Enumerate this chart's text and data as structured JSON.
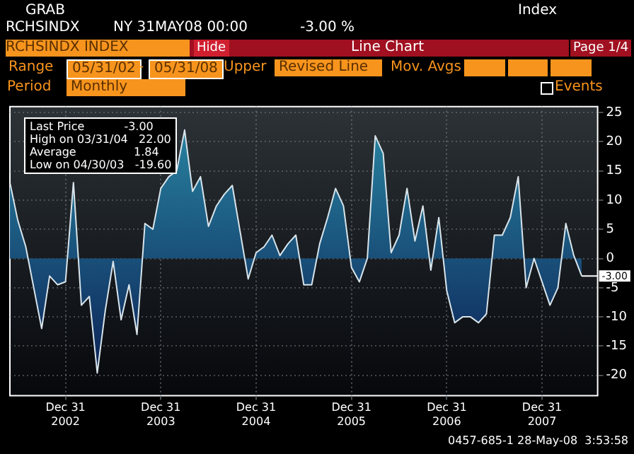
{
  "chart_data": {
    "type": "area",
    "title": "RCHSINDX INDEX",
    "x": [
      "2002-05",
      "2002-06",
      "2002-07",
      "2002-08",
      "2002-09",
      "2002-10",
      "2002-11",
      "2002-12",
      "2003-01",
      "2003-02",
      "2003-03",
      "2003-04",
      "2003-05",
      "2003-06",
      "2003-07",
      "2003-08",
      "2003-09",
      "2003-10",
      "2003-11",
      "2003-12",
      "2004-01",
      "2004-02",
      "2004-03",
      "2004-04",
      "2004-05",
      "2004-06",
      "2004-07",
      "2004-08",
      "2004-09",
      "2004-10",
      "2004-11",
      "2004-12",
      "2005-01",
      "2005-02",
      "2005-03",
      "2005-04",
      "2005-05",
      "2005-06",
      "2005-07",
      "2005-08",
      "2005-09",
      "2005-10",
      "2005-11",
      "2005-12",
      "2006-01",
      "2006-02",
      "2006-03",
      "2006-04",
      "2006-05",
      "2006-06",
      "2006-07",
      "2006-08",
      "2006-09",
      "2006-10",
      "2006-11",
      "2006-12",
      "2007-01",
      "2007-02",
      "2007-03",
      "2007-04",
      "2007-05",
      "2007-06",
      "2007-07",
      "2007-08",
      "2007-09",
      "2007-10",
      "2007-11",
      "2007-12",
      "2008-01",
      "2008-02",
      "2008-03",
      "2008-04",
      "2008-05"
    ],
    "series": [
      {
        "color": "#2a8aa6",
        "values": [
          13,
          6.5,
          2,
          -5,
          -12,
          -3,
          -4.5,
          -4,
          13,
          -8,
          -6.5,
          -19.6,
          -9,
          -0.5,
          -10.5,
          -4.5,
          -13,
          6,
          5,
          12,
          14,
          15,
          22,
          11.5,
          14,
          5.5,
          9,
          11,
          12.5,
          4.5,
          -3.5,
          1,
          2,
          4,
          0.5,
          2.5,
          4,
          -4.5,
          -4.5,
          2.5,
          7,
          12,
          9,
          -1.5,
          -4,
          0,
          21,
          18,
          1,
          4,
          12,
          3,
          9,
          -2,
          7,
          -5.5,
          -11,
          -10,
          -10,
          -11,
          -9.5,
          4,
          4,
          7,
          14,
          -5,
          0,
          -4,
          -8,
          -5,
          6,
          0.5,
          -3
        ]
      }
    ],
    "xlim": [
      "2002-05",
      "2008-07"
    ],
    "xticks": [
      {
        "value": "2002-12",
        "label": "Dec 31\n2002"
      },
      {
        "value": "2003-12",
        "label": "Dec 31\n2003"
      },
      {
        "value": "2004-12",
        "label": "Dec 31\n2004"
      },
      {
        "value": "2005-12",
        "label": "Dec 31\n2005"
      },
      {
        "value": "2006-12",
        "label": "Dec 31\n2006"
      },
      {
        "value": "2007-12",
        "label": "Dec 31\n2007"
      }
    ],
    "ylim": [
      -23.5,
      26
    ],
    "yticks": [
      -20,
      -15,
      -10,
      -5,
      0,
      5,
      10,
      15,
      20,
      25
    ],
    "grid": true,
    "annotations": [
      "GRAB",
      "RCHSINDX",
      "NY 31MAY08 00:00",
      "-3.00 %",
      "Index",
      "Hide",
      "Line Chart",
      "Page 1/4",
      "Range",
      "05/31/02",
      "-",
      "05/31/08",
      "Upper",
      "Revised Line",
      "Mov. Avgs",
      "Period",
      "Monthly",
      "Events",
      "Last Price           -3.00",
      "High on 03/31/04   22.00",
      "Average                1.84",
      "Low on 04/30/03   -19.60",
      {
        "text": "-3.00",
        "x": "2008-05",
        "y": -3
      },
      "0457-685-1 28-May-08  3:53:58"
    ]
  }
}
